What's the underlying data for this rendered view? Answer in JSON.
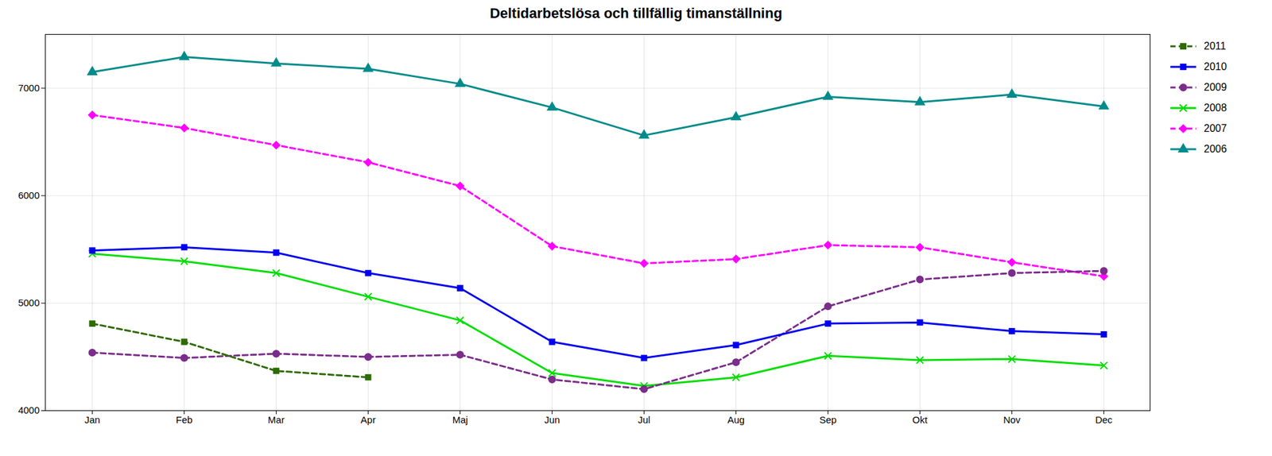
{
  "chart_data": {
    "type": "line",
    "title": "Deltidarbetslösa och tillfällig timanställning",
    "categories": [
      "Jan",
      "Feb",
      "Mar",
      "Apr",
      "Maj",
      "Jun",
      "Jul",
      "Aug",
      "Sep",
      "Okt",
      "Nov",
      "Dec"
    ],
    "series": [
      {
        "name": "2006",
        "color": "#008B8B",
        "marker": "triangle",
        "line_style": "solid",
        "values": [
          7150,
          7290,
          7230,
          7180,
          7040,
          6820,
          6560,
          6730,
          6920,
          6870,
          6940,
          6830
        ]
      },
      {
        "name": "2007",
        "color": "#FF00FF",
        "marker": "diamond",
        "line_style": "dashed",
        "values": [
          6750,
          6630,
          6470,
          6310,
          6090,
          5530,
          5370,
          5410,
          5540,
          5520,
          5380,
          5250
        ]
      },
      {
        "name": "2008",
        "color": "#00DD00",
        "marker": "x",
        "line_style": "solid",
        "values": [
          5460,
          5390,
          5280,
          5060,
          4840,
          4350,
          4230,
          4310,
          4510,
          4470,
          4480,
          4420
        ]
      },
      {
        "name": "2009",
        "color": "#7B2D8B",
        "marker": "circle",
        "line_style": "dashed",
        "values": [
          4540,
          4490,
          4530,
          4500,
          4520,
          4290,
          4200,
          4450,
          4970,
          5220,
          5280,
          5300
        ]
      },
      {
        "name": "2010",
        "color": "#0000EE",
        "marker": "square",
        "line_style": "solid",
        "values": [
          5490,
          5520,
          5470,
          5280,
          5140,
          4640,
          4490,
          4610,
          4810,
          4820,
          4740,
          4710
        ]
      },
      {
        "name": "2011",
        "color": "#2E6B00",
        "marker": "square",
        "line_style": "dashed",
        "values": [
          4810,
          4640,
          4370,
          4310,
          null,
          null,
          null,
          null,
          null,
          null,
          null,
          null
        ]
      }
    ],
    "ylim": [
      4000,
      7500
    ],
    "yticks": [
      4000,
      5000,
      6000,
      7000
    ],
    "grid": true,
    "legend": "right"
  }
}
